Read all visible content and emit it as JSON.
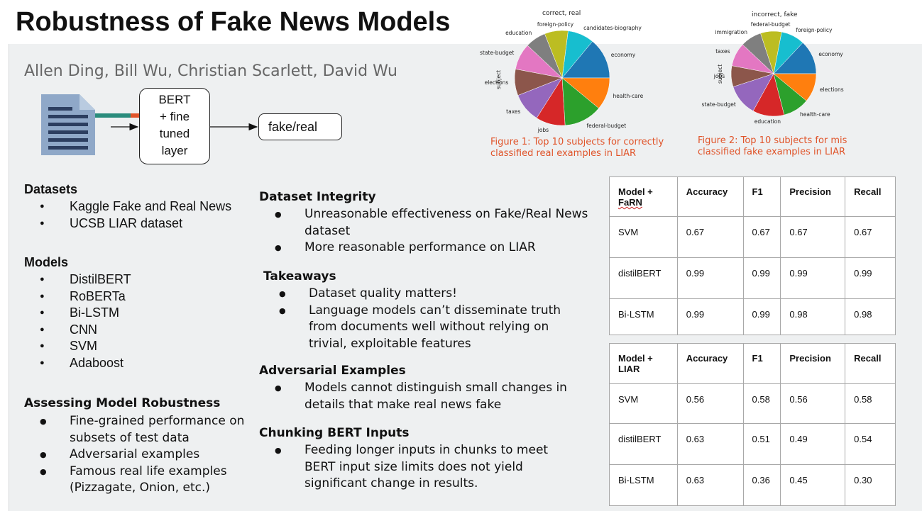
{
  "title": "Robustness of Fake News Models",
  "authors": "Allen Ding, Bill Wu, Christian Scarlett, David Wu",
  "diagram": {
    "model_lines": [
      "BERT",
      "+ fine",
      "tuned",
      "layer"
    ],
    "output_label": "fake/real"
  },
  "datasets": {
    "heading": "Datasets",
    "items": [
      "Kaggle Fake and Real News",
      "UCSB LIAR dataset"
    ]
  },
  "models": {
    "heading": "Models",
    "items": [
      "DistilBERT",
      "RoBERTa",
      "Bi-LSTM",
      "CNN",
      "SVM",
      "Adaboost"
    ]
  },
  "robustness": {
    "heading": "Assessing Model Robustness",
    "items": [
      "Fine-grained performance on subsets of test data",
      "Adversarial examples",
      "Famous real life examples (Pizzagate, Onion, etc.)"
    ]
  },
  "integrity": {
    "heading": "Dataset Integrity",
    "items": [
      "Unreasonable effectiveness on Fake/Real News dataset",
      "More reasonable performance on LIAR"
    ]
  },
  "takeaways": {
    "heading": "Takeaways",
    "items": [
      "Dataset quality matters!",
      "Language models can’t disseminate truth from documents well without relying on trivial, exploitable features"
    ]
  },
  "adversarial": {
    "heading": "Adversarial Examples",
    "items": [
      "Models cannot distinguish small changes in details that make real news fake"
    ]
  },
  "chunking": {
    "heading": "Chunking BERT Inputs",
    "items": [
      "Feeding longer inputs in chunks to meet BERT input size limits does not yield significant change in results."
    ]
  },
  "colors": {
    "caption": "#e0542a",
    "pie": [
      "#1f77b4",
      "#17becf",
      "#bcbd22",
      "#7f7f7f",
      "#e377c2",
      "#8c564b",
      "#9467bd",
      "#d62728",
      "#2ca02c",
      "#ff7f0e"
    ]
  },
  "chart_data": [
    {
      "type": "pie",
      "title": "correct, real",
      "ylabel": "subject",
      "categories": [
        "economy",
        "candidates-biography",
        "foreign-policy",
        "education",
        "state-budget",
        "elections",
        "taxes",
        "jobs",
        "federal-budget",
        "health-care"
      ],
      "values": [
        14,
        9,
        8,
        7,
        9,
        9,
        10,
        10,
        13,
        11
      ]
    },
    {
      "type": "pie",
      "title": "incorrect, fake",
      "ylabel": "subject",
      "categories": [
        "economy",
        "foreign-policy",
        "federal-budget",
        "immigration",
        "taxes",
        "jobs",
        "state-budget",
        "education",
        "health-care",
        "elections"
      ],
      "values": [
        13,
        9,
        8,
        8,
        9,
        8,
        12,
        12,
        10,
        11
      ]
    }
  ],
  "captions": [
    "Figure 1: Top 10 subjects for correctly classified real examples in LIAR",
    "Figure 2: Top 10 subjects for mis classified fake examples in LIAR"
  ],
  "tables": [
    {
      "header_line1": "Model +",
      "header_line2": "FaRN",
      "columns": [
        "Accuracy",
        "F1",
        "Precision",
        "Recall"
      ],
      "rows": [
        [
          "SVM",
          "0.67",
          "0.67",
          "0.67",
          "0.67"
        ],
        [
          "distilBERT",
          "0.99",
          "0.99",
          "0.99",
          "0.99"
        ],
        [
          "Bi-LSTM",
          "0.99",
          "0.99",
          "0.98",
          "0.98"
        ]
      ]
    },
    {
      "header_line1": "Model +",
      "header_line2": "LIAR",
      "columns": [
        "Accuracy",
        "F1",
        "Precision",
        "Recall"
      ],
      "rows": [
        [
          "SVM",
          "0.56",
          "0.58",
          "0.56",
          "0.58"
        ],
        [
          "distilBERT",
          "0.63",
          "0.51",
          "0.49",
          "0.54"
        ],
        [
          "Bi-LSTM",
          "0.63",
          "0.36",
          "0.45",
          "0.30"
        ]
      ]
    }
  ]
}
